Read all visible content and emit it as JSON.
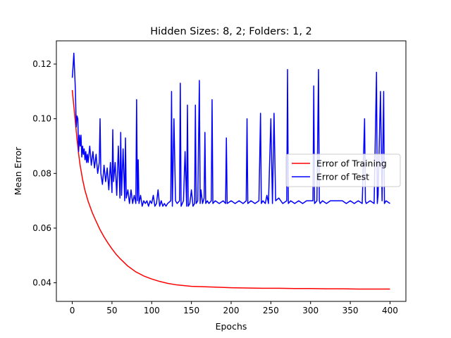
{
  "chart_data": {
    "type": "line",
    "title": "Hidden Sizes: 8, 2; Folders: 1, 2",
    "xlabel": "Epochs",
    "ylabel": "Mean Error",
    "xlim": [
      -20,
      420
    ],
    "ylim": [
      0.0332,
      0.1285
    ],
    "xticks": [
      0,
      50,
      100,
      150,
      200,
      250,
      300,
      350,
      400
    ],
    "xtick_labels": [
      "0",
      "50",
      "100",
      "150",
      "200",
      "250",
      "300",
      "350",
      "400"
    ],
    "yticks": [
      0.04,
      0.06,
      0.08,
      0.1,
      0.12
    ],
    "ytick_labels": [
      "0.04",
      "0.06",
      "0.08",
      "0.10",
      "0.12"
    ],
    "grid": false,
    "legend_position": "center-right",
    "series": [
      {
        "name": "Error of Training",
        "color": "#ff0000",
        "x": [
          0,
          2,
          4,
          6,
          8,
          10,
          13,
          16,
          20,
          25,
          30,
          35,
          40,
          45,
          50,
          55,
          60,
          70,
          80,
          90,
          100,
          110,
          120,
          130,
          140,
          150,
          160,
          180,
          200,
          220,
          240,
          260,
          280,
          300,
          320,
          340,
          360,
          380,
          400
        ],
        "y": [
          0.1105,
          0.1045,
          0.0985,
          0.0925,
          0.0872,
          0.0828,
          0.0778,
          0.0738,
          0.0698,
          0.0658,
          0.0625,
          0.0594,
          0.0568,
          0.0545,
          0.0524,
          0.0505,
          0.0489,
          0.0461,
          0.044,
          0.0425,
          0.0414,
          0.0405,
          0.0398,
          0.0393,
          0.039,
          0.0387,
          0.0386,
          0.0384,
          0.0382,
          0.0381,
          0.038,
          0.038,
          0.0379,
          0.0379,
          0.0378,
          0.0378,
          0.0377,
          0.0377,
          0.0377
        ]
      },
      {
        "name": "Error of Test",
        "color": "#0000ff",
        "x": [
          0,
          1,
          2,
          3,
          4,
          5,
          6,
          7,
          8,
          9,
          10,
          11,
          12,
          13,
          14,
          15,
          16,
          17,
          18,
          19,
          20,
          22,
          24,
          26,
          28,
          30,
          32,
          34,
          35,
          36,
          38,
          40,
          42,
          44,
          46,
          48,
          50,
          51,
          52,
          54,
          56,
          58,
          60,
          61,
          62,
          64,
          66,
          67,
          68,
          70,
          72,
          74,
          76,
          78,
          80,
          81,
          82,
          83,
          84,
          86,
          88,
          90,
          92,
          94,
          96,
          98,
          100,
          102,
          104,
          106,
          108,
          110,
          112,
          114,
          116,
          118,
          120,
          124,
          125,
          126,
          128,
          130,
          132,
          135,
          136,
          137,
          140,
          142,
          144,
          145,
          146,
          148,
          150,
          152,
          154,
          155,
          156,
          158,
          160,
          161,
          162,
          164,
          166,
          167,
          168,
          170,
          172,
          175,
          176,
          177,
          180,
          185,
          190,
          193,
          194,
          195,
          200,
          205,
          210,
          215,
          219,
          220,
          221,
          225,
          230,
          235,
          237,
          238,
          240,
          243,
          245,
          247,
          250,
          252,
          254,
          256,
          260,
          265,
          270,
          271,
          272,
          275,
          280,
          285,
          290,
          295,
          300,
          303,
          304,
          305,
          308,
          310,
          311,
          312,
          315,
          320,
          325,
          330,
          335,
          340,
          345,
          350,
          355,
          360,
          365,
          368,
          369,
          370,
          375,
          380,
          383,
          384,
          385,
          388,
          390,
          392,
          393,
          395,
          400
        ],
        "y": [
          0.115,
          0.119,
          0.124,
          0.117,
          0.11,
          0.097,
          0.101,
          0.1,
          0.088,
          0.094,
          0.09,
          0.094,
          0.086,
          0.09,
          0.087,
          0.089,
          0.085,
          0.088,
          0.084,
          0.087,
          0.084,
          0.09,
          0.083,
          0.088,
          0.082,
          0.087,
          0.08,
          0.084,
          0.1,
          0.08,
          0.076,
          0.083,
          0.077,
          0.082,
          0.074,
          0.084,
          0.073,
          0.096,
          0.077,
          0.084,
          0.072,
          0.09,
          0.071,
          0.095,
          0.072,
          0.089,
          0.07,
          0.093,
          0.071,
          0.074,
          0.069,
          0.074,
          0.069,
          0.072,
          0.069,
          0.107,
          0.07,
          0.085,
          0.069,
          0.072,
          0.068,
          0.07,
          0.069,
          0.07,
          0.068,
          0.07,
          0.069,
          0.072,
          0.068,
          0.069,
          0.074,
          0.068,
          0.07,
          0.068,
          0.069,
          0.068,
          0.069,
          0.07,
          0.11,
          0.068,
          0.1,
          0.07,
          0.069,
          0.07,
          0.113,
          0.068,
          0.07,
          0.088,
          0.068,
          0.105,
          0.068,
          0.069,
          0.074,
          0.068,
          0.069,
          0.105,
          0.069,
          0.07,
          0.114,
          0.069,
          0.074,
          0.069,
          0.071,
          0.095,
          0.069,
          0.07,
          0.069,
          0.07,
          0.107,
          0.069,
          0.07,
          0.069,
          0.07,
          0.069,
          0.093,
          0.069,
          0.07,
          0.069,
          0.07,
          0.069,
          0.07,
          0.1,
          0.069,
          0.07,
          0.069,
          0.07,
          0.102,
          0.069,
          0.07,
          0.069,
          0.072,
          0.069,
          0.1,
          0.069,
          0.102,
          0.07,
          0.071,
          0.069,
          0.07,
          0.118,
          0.069,
          0.07,
          0.069,
          0.07,
          0.069,
          0.07,
          0.07,
          0.07,
          0.112,
          0.069,
          0.07,
          0.118,
          0.07,
          0.069,
          0.07,
          0.069,
          0.07,
          0.07,
          0.07,
          0.07,
          0.069,
          0.07,
          0.069,
          0.07,
          0.069,
          0.1,
          0.07,
          0.069,
          0.07,
          0.069,
          0.117,
          0.069,
          0.072,
          0.11,
          0.07,
          0.11,
          0.069,
          0.07,
          0.069
        ]
      }
    ]
  }
}
